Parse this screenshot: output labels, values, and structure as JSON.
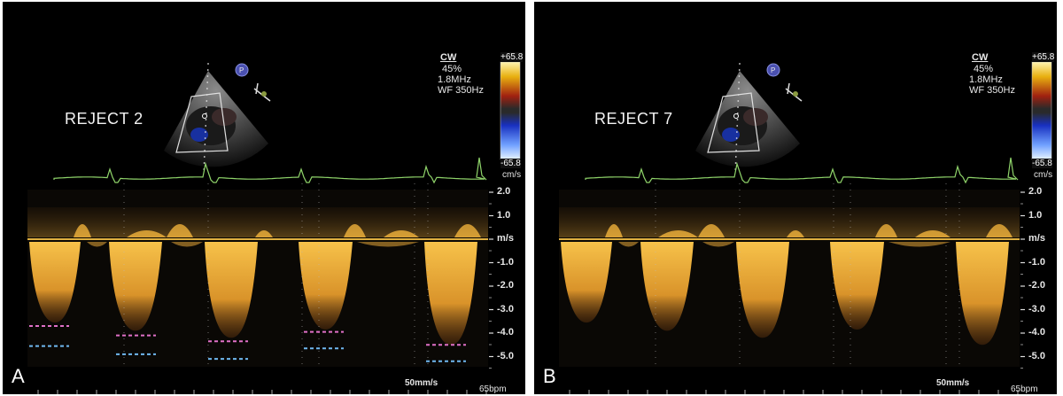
{
  "panels": [
    {
      "id": "A",
      "letter": "A",
      "reject_label": "REJECT 2",
      "show_measure_lines": true
    },
    {
      "id": "B",
      "letter": "B",
      "reject_label": "REJECT 7",
      "show_measure_lines": false
    }
  ],
  "params": {
    "mode": "CW",
    "power": "45%",
    "freq": "1.8MHz",
    "wall_filter": "WF 350Hz"
  },
  "color_scale": {
    "top": "+65.8",
    "bottom": "-65.8",
    "unit": "cm/s"
  },
  "velocity_axis": {
    "ticks": [
      "2.0",
      "1.0",
      "m/s",
      "-1.0",
      "-2.0",
      "-3.0",
      "-4.0",
      "-5.0"
    ],
    "values": [
      2,
      1,
      0,
      -1,
      -2,
      -3,
      -4,
      -5
    ]
  },
  "sweep_speed": "50mm/s",
  "heart_rate": "65bpm",
  "probe_marker": "P",
  "colors": {
    "ecg": "#8fd46a",
    "doppler": "#f0b43c",
    "baseline": "#e0b040",
    "measure_pink": "#e070c8",
    "measure_blue": "#6fb8f0"
  }
}
